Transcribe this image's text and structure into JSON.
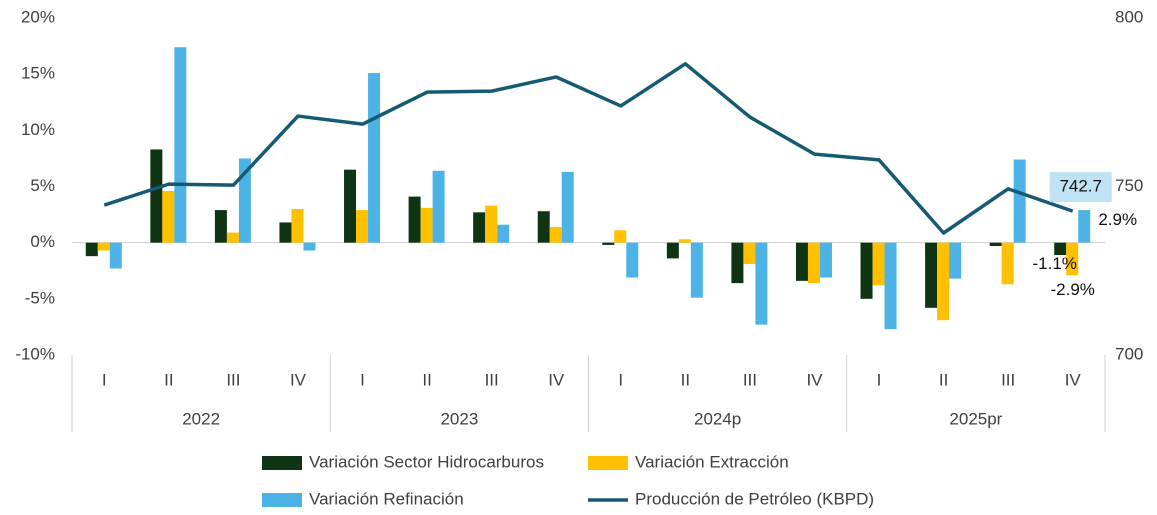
{
  "chart_data": {
    "type": "bar_line",
    "categories": [
      "I",
      "II",
      "III",
      "IV",
      "I",
      "II",
      "III",
      "IV",
      "I",
      "II",
      "III",
      "IV",
      "I",
      "II",
      "III",
      "IV"
    ],
    "x_groups": [
      "2022",
      "2023",
      "2024p",
      "2025pr"
    ],
    "series": [
      {
        "name": "Variación Sector Hidrocarburos",
        "color": "#0e3413",
        "type": "bar",
        "values": [
          -1.2,
          8.3,
          2.9,
          1.8,
          6.5,
          4.1,
          2.7,
          2.8,
          -0.2,
          -1.4,
          -3.6,
          -3.4,
          -5.0,
          -5.8,
          -0.3,
          -1.1
        ],
        "value_labels": [
          null,
          null,
          null,
          null,
          null,
          null,
          null,
          null,
          null,
          null,
          null,
          null,
          null,
          null,
          null,
          "-1.1%"
        ]
      },
      {
        "name": "Variación Extracción",
        "color": "#ffc000",
        "type": "bar",
        "values": [
          -0.7,
          4.6,
          0.9,
          3.0,
          2.9,
          3.1,
          3.3,
          1.4,
          1.1,
          0.3,
          -1.9,
          -3.6,
          -3.8,
          -6.9,
          -3.7,
          -2.9
        ],
        "value_labels": [
          null,
          null,
          null,
          null,
          null,
          null,
          null,
          null,
          null,
          null,
          null,
          null,
          null,
          null,
          null,
          "-2.9%"
        ]
      },
      {
        "name": "Variación Refinación",
        "color": "#4db3e6",
        "type": "bar",
        "values": [
          -2.3,
          17.4,
          7.5,
          -0.7,
          15.1,
          6.4,
          1.6,
          6.3,
          -3.1,
          -4.9,
          -7.3,
          -3.1,
          -7.7,
          -3.2,
          7.4,
          2.9
        ],
        "value_labels": [
          null,
          null,
          null,
          null,
          null,
          null,
          null,
          null,
          null,
          null,
          null,
          null,
          null,
          null,
          null,
          "2.9%"
        ]
      },
      {
        "name": "Producción de Petróleo (KBPD)",
        "color": "#145a72",
        "type": "line",
        "axis": "y2",
        "values": [
          744.5,
          750.7,
          750.4,
          770.9,
          768.5,
          778.0,
          778.3,
          782.5,
          773.9,
          786.4,
          770.6,
          759.6,
          757.9,
          736.2,
          749.3,
          742.7
        ],
        "value_labels": [
          null,
          null,
          null,
          null,
          null,
          null,
          null,
          null,
          null,
          null,
          null,
          null,
          null,
          null,
          null,
          "742.7"
        ]
      }
    ],
    "ylim": [
      -10,
      20
    ],
    "yticks": [
      {
        "value": -10,
        "label": "-10%"
      },
      {
        "value": -5,
        "label": "-5%"
      },
      {
        "value": 0,
        "label": "0%"
      },
      {
        "value": 5,
        "label": "5%"
      },
      {
        "value": 10,
        "label": "10%"
      },
      {
        "value": 15,
        "label": "15%"
      },
      {
        "value": 20,
        "label": "20%"
      }
    ],
    "y2lim": [
      700,
      800
    ],
    "y2ticks": [
      700,
      750,
      800
    ]
  }
}
